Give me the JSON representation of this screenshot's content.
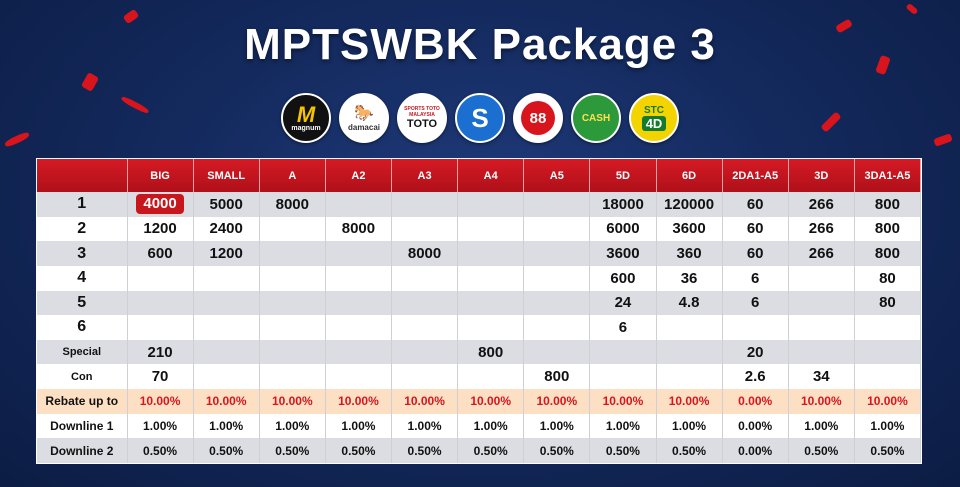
{
  "title": "MPTSWBK Package 3",
  "logos": [
    {
      "name": "magnum",
      "text": "M",
      "sub": "magnum"
    },
    {
      "name": "damacai",
      "text": "🐎",
      "sub": "damacai"
    },
    {
      "name": "sportstoto",
      "text": "TOTO",
      "sub": "SPORTS TOTO MALAYSIA"
    },
    {
      "name": "singapore-pools",
      "text": "S"
    },
    {
      "name": "88",
      "text": "88"
    },
    {
      "name": "cash-sweep",
      "text": "CASH"
    },
    {
      "name": "stc-4d",
      "text": "STC",
      "sub": "4D"
    }
  ],
  "table": {
    "headers": [
      "",
      "BIG",
      "SMALL",
      "A",
      "A2",
      "A3",
      "A4",
      "A5",
      "5D",
      "6D",
      "2DA1-A5",
      "3D",
      "3DA1-A5"
    ],
    "rows": [
      {
        "label": "1",
        "cells": [
          "4000",
          "5000",
          "8000",
          "",
          "",
          "",
          "",
          "18000",
          "120000",
          "60",
          "266",
          "800"
        ]
      },
      {
        "label": "2",
        "cells": [
          "1200",
          "2400",
          "",
          "8000",
          "",
          "",
          "",
          "6000",
          "3600",
          "60",
          "266",
          "800"
        ]
      },
      {
        "label": "3",
        "cells": [
          "600",
          "1200",
          "",
          "",
          "8000",
          "",
          "",
          "3600",
          "360",
          "60",
          "266",
          "800"
        ]
      },
      {
        "label": "4",
        "cells": [
          "",
          "",
          "",
          "",
          "",
          "",
          "",
          "600",
          "36",
          "6",
          "",
          "80"
        ]
      },
      {
        "label": "5",
        "cells": [
          "",
          "",
          "",
          "",
          "",
          "",
          "",
          "24",
          "4.8",
          "6",
          "",
          "80"
        ]
      },
      {
        "label": "6",
        "cells": [
          "",
          "",
          "",
          "",
          "",
          "",
          "",
          "6",
          "",
          "",
          "",
          ""
        ]
      },
      {
        "label": "Special",
        "cells": [
          "210",
          "",
          "",
          "",
          "",
          "800",
          "",
          "",
          "",
          "20",
          "",
          ""
        ]
      },
      {
        "label": "Con",
        "cells": [
          "70",
          "",
          "",
          "",
          "",
          "",
          "800",
          "",
          "",
          "2.6",
          "34",
          ""
        ]
      },
      {
        "label": "Rebate up to",
        "cells": [
          "10.00%",
          "10.00%",
          "10.00%",
          "10.00%",
          "10.00%",
          "10.00%",
          "10.00%",
          "10.00%",
          "10.00%",
          "0.00%",
          "10.00%",
          "10.00%"
        ]
      },
      {
        "label": "Downline 1",
        "cells": [
          "1.00%",
          "1.00%",
          "1.00%",
          "1.00%",
          "1.00%",
          "1.00%",
          "1.00%",
          "1.00%",
          "1.00%",
          "0.00%",
          "1.00%",
          "1.00%"
        ]
      },
      {
        "label": "Downline 2",
        "cells": [
          "0.50%",
          "0.50%",
          "0.50%",
          "0.50%",
          "0.50%",
          "0.50%",
          "0.50%",
          "0.50%",
          "0.50%",
          "0.00%",
          "0.50%",
          "0.50%"
        ]
      }
    ]
  },
  "colors": {
    "accent": "#d51a24",
    "background": "#142a5e",
    "rebate_row": "#fde0c4",
    "grey_row": "#dcdde2"
  }
}
